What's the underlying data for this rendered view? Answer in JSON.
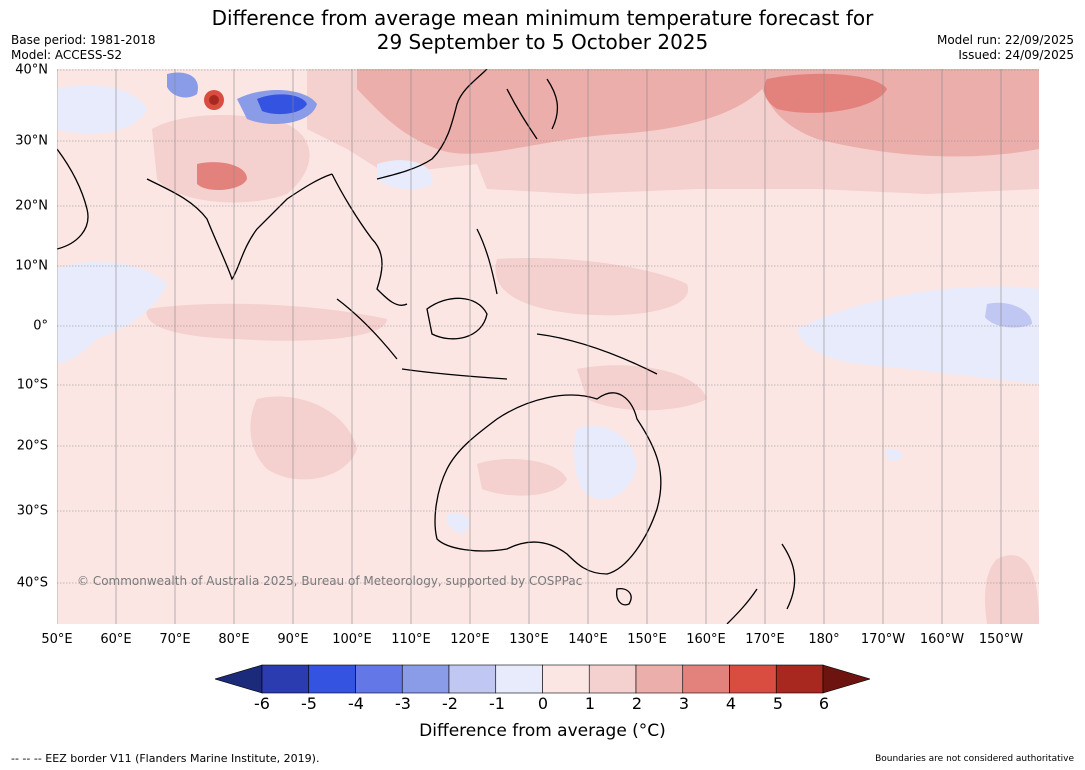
{
  "title": {
    "line1": "Difference from average mean minimum temperature forecast for",
    "line2": "29 September to 5 October 2025"
  },
  "meta": {
    "base_period": "Base period: 1981-2018",
    "model": "Model: ACCESS-S2",
    "model_run": "Model run: 22/09/2025",
    "issued": "Issued: 24/09/2025"
  },
  "map": {
    "copyright": "© Commonwealth of Australia 2025, Bureau of Meteorology, supported by COSPPac",
    "lon_labels": [
      "50°E",
      "60°E",
      "70°E",
      "80°E",
      "90°E",
      "100°E",
      "110°E",
      "120°E",
      "130°E",
      "140°E",
      "150°E",
      "160°E",
      "170°E",
      "180°",
      "170°W",
      "160°W",
      "150°W"
    ],
    "lat_labels": [
      "40°N",
      "30°N",
      "20°N",
      "10°N",
      "0°",
      "10°S",
      "20°S",
      "30°S",
      "40°S"
    ],
    "background_color": "#fbe6e4"
  },
  "colorbar": {
    "title": "Difference from average (°C)",
    "ticks": [
      "-6",
      "-5",
      "-4",
      "-3",
      "-2",
      "-1",
      "0",
      "1",
      "2",
      "3",
      "4",
      "5",
      "6"
    ],
    "colors": [
      "#1b2a7a",
      "#2a3cb0",
      "#3453e0",
      "#6377e6",
      "#8a9be8",
      "#c0c7f2",
      "#e8ebfb",
      "#fbe6e4",
      "#f4d0ce",
      "#ecaeaa",
      "#e3827d",
      "#d94c40",
      "#a8281f",
      "#6e1410"
    ]
  },
  "footer": {
    "eez": "--  --  -- EEZ border V11 (Flanders Marine Institute, 2019).",
    "boundaries": "Boundaries are not considered authoritative"
  }
}
